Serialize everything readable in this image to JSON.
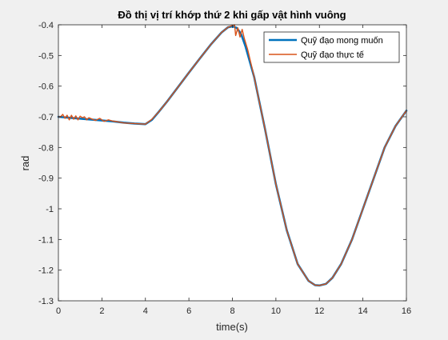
{
  "chart_data": {
    "type": "line",
    "title": "Đồ thị vị trí khớp thứ 2 khi gấp vật hình vuông",
    "xlabel": "time(s)",
    "ylabel": "rad",
    "xlim": [
      0,
      16
    ],
    "ylim": [
      -1.3,
      -0.4
    ],
    "xticks": [
      0,
      2,
      4,
      6,
      8,
      10,
      12,
      14,
      16
    ],
    "xtick_labels": [
      "0",
      "2",
      "4",
      "6",
      "8",
      "10",
      "12",
      "14",
      "16"
    ],
    "yticks": [
      -1.3,
      -1.2,
      -1.1,
      -1.0,
      -0.9,
      -0.8,
      -0.7,
      -0.6,
      -0.5,
      -0.4
    ],
    "ytick_labels": [
      "-1.3",
      "-1.2",
      "-1.1",
      "-1",
      "-0.9",
      "-0.8",
      "-0.7",
      "-0.6",
      "-0.5",
      "-0.4"
    ],
    "grid": false,
    "legend_position": "top-right",
    "series": [
      {
        "name": "Quỹ đạo mong muốn",
        "color": "#0072BD",
        "line_width": 2.6,
        "x": [
          0,
          0.5,
          1,
          1.5,
          2,
          2.5,
          3,
          3.5,
          4,
          4.3,
          4.6,
          5,
          5.5,
          6,
          6.5,
          7,
          7.5,
          7.8,
          8,
          8.2,
          8.4,
          8.6,
          9,
          9.5,
          10,
          10.5,
          11,
          11.5,
          11.8,
          12,
          12.3,
          12.6,
          13,
          13.5,
          14,
          14.5,
          15,
          15.5,
          16
        ],
        "y": [
          -0.7,
          -0.703,
          -0.706,
          -0.709,
          -0.712,
          -0.715,
          -0.719,
          -0.722,
          -0.724,
          -0.71,
          -0.685,
          -0.65,
          -0.603,
          -0.556,
          -0.51,
          -0.465,
          -0.425,
          -0.408,
          -0.405,
          -0.41,
          -0.43,
          -0.47,
          -0.57,
          -0.74,
          -0.92,
          -1.07,
          -1.18,
          -1.235,
          -1.249,
          -1.25,
          -1.245,
          -1.225,
          -1.18,
          -1.1,
          -1.0,
          -0.9,
          -0.8,
          -0.73,
          -0.68
        ]
      },
      {
        "name": "Quỹ đạo thực tế",
        "color": "#D95319",
        "line_width": 1.4,
        "x": [
          0,
          0.1,
          0.2,
          0.3,
          0.4,
          0.5,
          0.6,
          0.7,
          0.8,
          0.9,
          1.0,
          1.1,
          1.2,
          1.3,
          1.4,
          1.5,
          1.7,
          1.9,
          2.1,
          2.3,
          2.5,
          2.7,
          3,
          3.5,
          4,
          4.3,
          4.6,
          5,
          5.5,
          6,
          6.5,
          7,
          7.5,
          7.8,
          8.0,
          8.1,
          8.15,
          8.25,
          8.35,
          8.45,
          8.55,
          8.7,
          9,
          9.5,
          10,
          10.5,
          11,
          11.5,
          11.8,
          12,
          12.3,
          12.6,
          13,
          13.5,
          14,
          14.5,
          15,
          15.5,
          16
        ],
        "y": [
          -0.7,
          -0.7,
          -0.692,
          -0.705,
          -0.695,
          -0.71,
          -0.695,
          -0.708,
          -0.697,
          -0.71,
          -0.698,
          -0.703,
          -0.7,
          -0.71,
          -0.703,
          -0.706,
          -0.712,
          -0.705,
          -0.715,
          -0.71,
          -0.714,
          -0.716,
          -0.72,
          -0.722,
          -0.724,
          -0.708,
          -0.685,
          -0.65,
          -0.603,
          -0.556,
          -0.51,
          -0.465,
          -0.425,
          -0.408,
          -0.402,
          -0.4,
          -0.435,
          -0.41,
          -0.44,
          -0.415,
          -0.445,
          -0.48,
          -0.57,
          -0.74,
          -0.92,
          -1.07,
          -1.18,
          -1.235,
          -1.249,
          -1.25,
          -1.245,
          -1.225,
          -1.18,
          -1.1,
          -1.0,
          -0.9,
          -0.8,
          -0.73,
          -0.68
        ]
      }
    ]
  }
}
